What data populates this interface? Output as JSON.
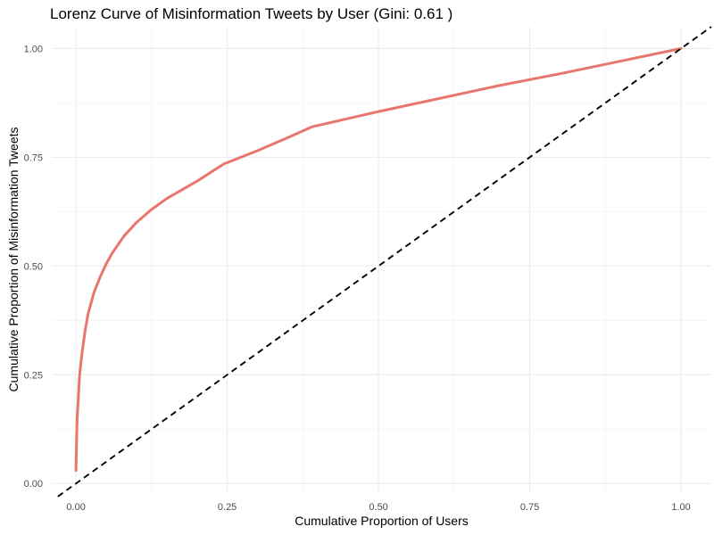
{
  "chart_data": {
    "type": "line",
    "title": "Lorenz Curve of Misinformation Tweets by User (Gini: 0.61 )",
    "xlabel": "Cumulative Proportion of Users",
    "ylabel": "Cumulative Proportion of Misinformation Tweets",
    "xlim": [
      -0.04,
      1.05
    ],
    "ylim": [
      -0.02,
      1.05
    ],
    "x_ticks": [
      0,
      0.25,
      0.5,
      0.75,
      1
    ],
    "x_tick_labels": [
      "0.00",
      "0.25",
      "0.50",
      "0.75",
      "1.00"
    ],
    "y_ticks": [
      0,
      0.25,
      0.5,
      0.75,
      1
    ],
    "y_tick_labels": [
      "0.00",
      "0.25",
      "0.50",
      "0.75",
      "1.00"
    ],
    "grid": true,
    "series": [
      {
        "color": "#e8766d",
        "style": "solid",
        "x": [
          0.0,
          0.001,
          0.002,
          0.004,
          0.006,
          0.01,
          0.015,
          0.02,
          0.03,
          0.04,
          0.05,
          0.06,
          0.08,
          0.1,
          0.125,
          0.15,
          0.175,
          0.2,
          0.245,
          0.3,
          0.35,
          0.39,
          0.5,
          0.6,
          0.7,
          0.8,
          0.9,
          1.0
        ],
        "y": [
          0.03,
          0.1,
          0.15,
          0.2,
          0.25,
          0.3,
          0.35,
          0.39,
          0.44,
          0.475,
          0.505,
          0.53,
          0.57,
          0.6,
          0.63,
          0.655,
          0.675,
          0.695,
          0.735,
          0.765,
          0.795,
          0.82,
          0.855,
          0.885,
          0.915,
          0.942,
          0.971,
          1.0
        ]
      },
      {
        "color": "#000000",
        "style": "dashed",
        "x": [
          -0.03,
          1.05
        ],
        "y": [
          -0.03,
          1.05
        ]
      }
    ]
  }
}
